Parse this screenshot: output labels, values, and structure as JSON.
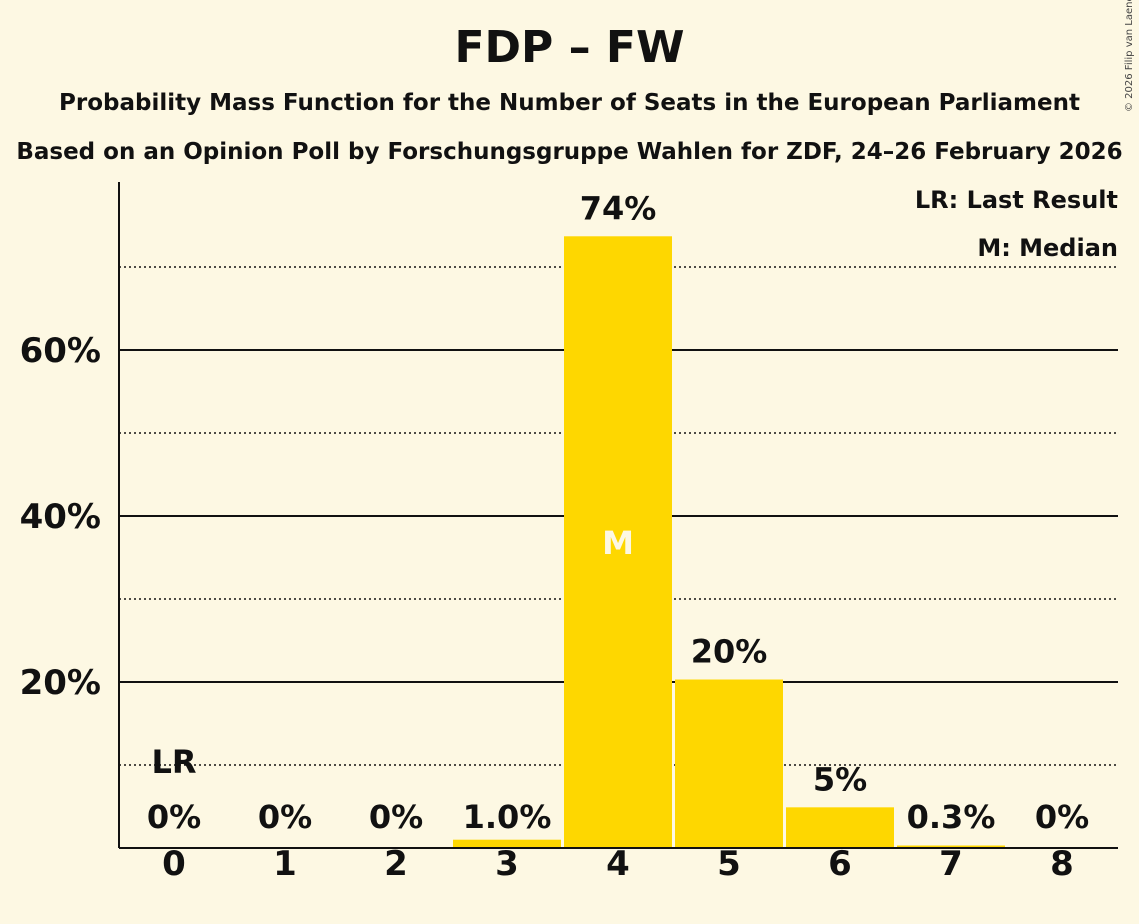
{
  "header": {
    "title": "FDP – FW",
    "subtitle1": "Probability Mass Function for the Number of Seats in the European Parliament",
    "subtitle2": "Based on an Opinion Poll by Forschungsgruppe Wahlen for ZDF, 24–26 February 2026",
    "copyright": "© 2026 Filip van Laenen"
  },
  "legend": {
    "lr": "LR: Last Result",
    "m": "M: Median"
  },
  "colors": {
    "bar": "#fed700",
    "background": "#fdf8e3",
    "text": "#111111",
    "median_label": "#fdf8e3"
  },
  "chart_data": {
    "type": "bar",
    "title": "FDP – FW",
    "xlabel": "",
    "ylabel": "",
    "categories": [
      "0",
      "1",
      "2",
      "3",
      "4",
      "5",
      "6",
      "7",
      "8"
    ],
    "values": [
      0,
      0,
      0,
      1.0,
      73.7,
      20.3,
      4.9,
      0.3,
      0
    ],
    "labels": [
      "0%",
      "0%",
      "0%",
      "1.0%",
      "74%",
      "20%",
      "5%",
      "0.3%",
      "0%"
    ],
    "ylim": [
      0,
      80
    ],
    "yticks_major": [
      20,
      40,
      60
    ],
    "ytick_labels": [
      "20%",
      "40%",
      "60%"
    ],
    "yticks_minor": [
      10,
      30,
      50,
      70
    ],
    "last_result_seat": 0,
    "last_result_label": "LR",
    "median_seat": 4,
    "median_label": "M"
  }
}
